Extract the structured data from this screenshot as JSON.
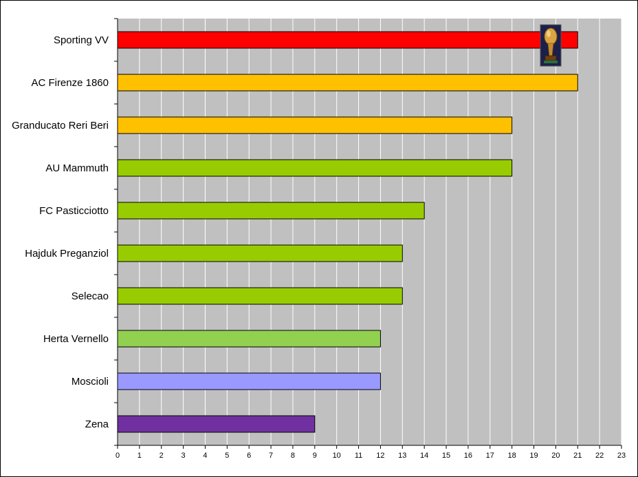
{
  "chart_data": {
    "type": "bar",
    "orientation": "horizontal",
    "categories": [
      "Sporting VV",
      "AC Firenze 1860",
      "Granducato Reri Beri",
      "AU Mammuth",
      "FC Pasticciotto",
      "Hajduk Preganziol",
      "Selecao",
      "Herta Vernello",
      "Moscioli",
      "Zena"
    ],
    "values": [
      21,
      21,
      18,
      18,
      14,
      13,
      13,
      12,
      12,
      9
    ],
    "colors": [
      "#ff0000",
      "#ffc000",
      "#ffc000",
      "#99cc00",
      "#99cc00",
      "#99cc00",
      "#99cc00",
      "#92d050",
      "#9999ff",
      "#7030a0"
    ],
    "xlim": [
      0,
      23
    ],
    "xticks": [
      0,
      1,
      2,
      3,
      4,
      5,
      6,
      7,
      8,
      9,
      10,
      11,
      12,
      13,
      14,
      15,
      16,
      17,
      18,
      19,
      20,
      21,
      22,
      23
    ],
    "grid": true,
    "plot_background": "#c0c0c0",
    "gridline_color": "#ffffff",
    "title": "",
    "xlabel": "",
    "ylabel": "",
    "annotation_icon": "trophy-icon"
  }
}
